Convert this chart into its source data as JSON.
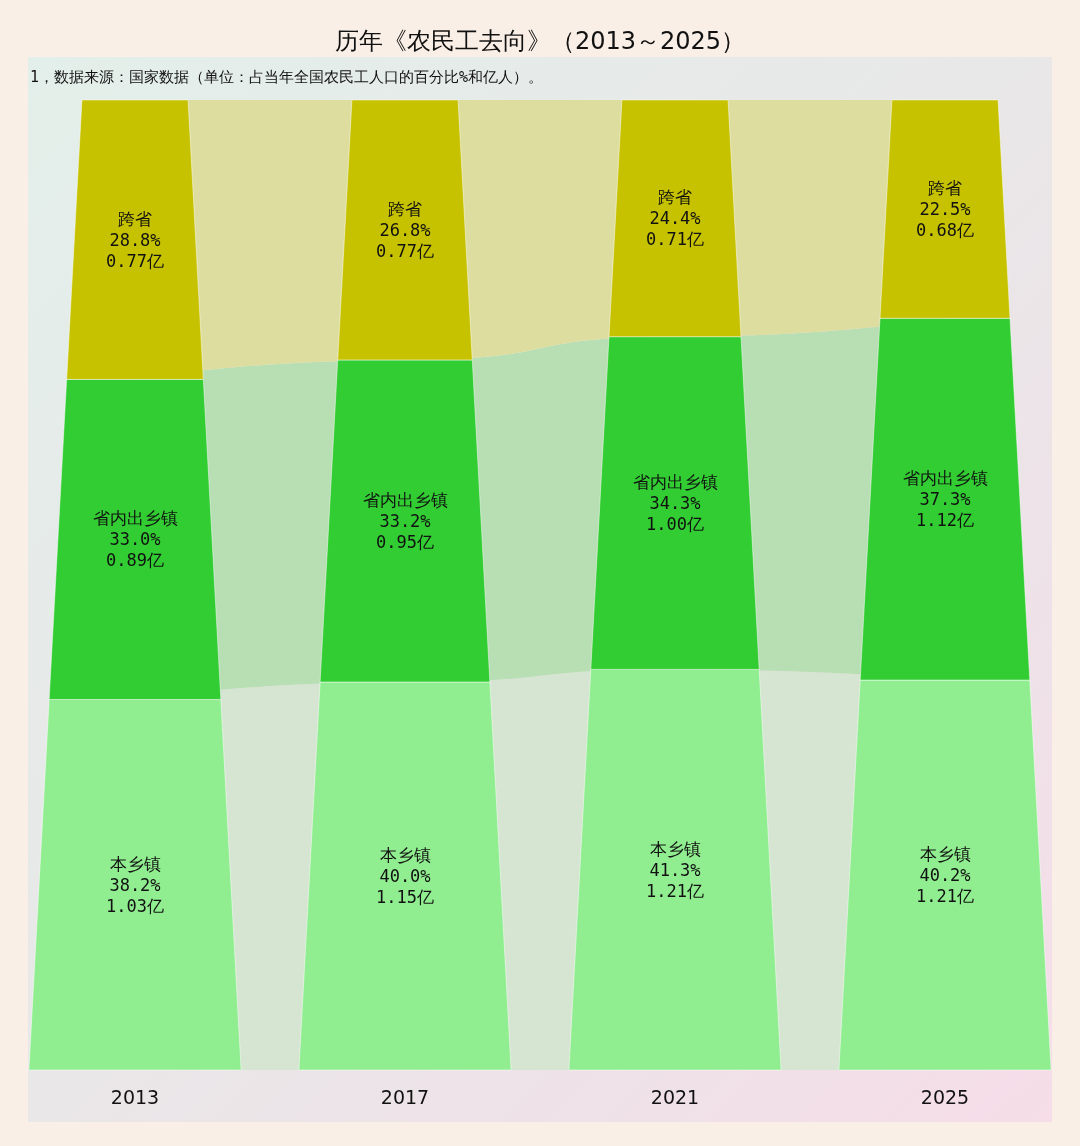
{
  "chart_data": {
    "type": "bar",
    "stacked": true,
    "title": "历年《农民工去向》（2013～2025）",
    "annotations": [
      "1，数据来源：国家数据（单位：占当年全国农民工人口的百分比%和亿人）。"
    ],
    "categories": [
      "2013",
      "2017",
      "2021",
      "2025"
    ],
    "series": [
      {
        "name": "本乡镇",
        "color": "#90ee90",
        "values": [
          38.2,
          40.0,
          41.3,
          40.2
        ],
        "value_labels": [
          "38.2%\n1.03亿",
          "40.0%\n1.15亿",
          "41.3%\n1.21亿",
          "40.2%\n1.21亿"
        ]
      },
      {
        "name": "省内出乡镇",
        "color": "#32cd32",
        "values": [
          33.0,
          33.2,
          34.3,
          37.3
        ],
        "value_labels": [
          "33.0%\n0.89亿",
          "33.2%\n0.95亿",
          "34.3%\n1.00亿",
          "37.3%\n1.12亿"
        ]
      },
      {
        "name": "跨省",
        "color": "#c6c200",
        "values": [
          28.8,
          26.8,
          24.4,
          22.5
        ],
        "value_labels": [
          "28.8%\n0.77亿",
          "26.8%\n0.77亿",
          "24.4%\n0.71亿",
          "22.5%\n0.68亿"
        ]
      },
      {
        "type": "area",
        "color": "#d6e4d2",
        "values": [
          38.2,
          40.0,
          41.3,
          40.2
        ]
      },
      {
        "type": "area",
        "color": "#b8deb4",
        "values": [
          33.0,
          33.2,
          34.3,
          37.3
        ]
      },
      {
        "type": "area",
        "color": "#dedda0",
        "values": [
          28.8,
          26.8,
          24.4,
          22.5
        ]
      }
    ]
  }
}
